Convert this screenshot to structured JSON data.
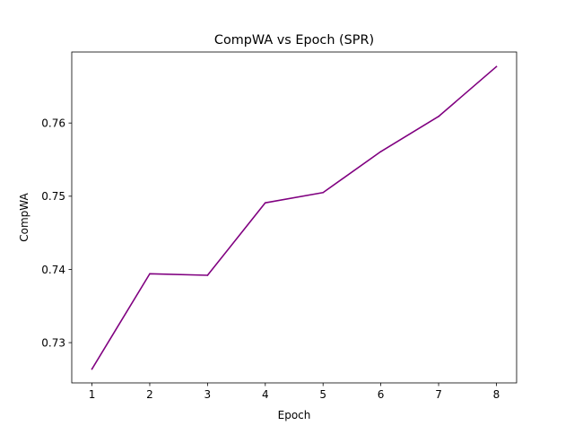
{
  "chart_data": {
    "type": "line",
    "title": "CompWA vs Epoch (SPR)",
    "xlabel": "Epoch",
    "ylabel": "CompWA",
    "x": [
      1,
      2,
      3,
      4,
      5,
      6,
      7,
      8
    ],
    "series": [
      {
        "values": [
          0.7264,
          0.7394,
          0.7392,
          0.7491,
          0.7505,
          0.7561,
          0.7609,
          0.7677
        ],
        "color": "#800080"
      }
    ],
    "xlim": [
      0.65,
      8.35
    ],
    "ylim": [
      0.7245,
      0.7697
    ],
    "xticks": [
      1,
      2,
      3,
      4,
      5,
      6,
      7,
      8
    ],
    "yticks": [
      0.73,
      0.74,
      0.75,
      0.76
    ],
    "ytick_labels": [
      "0.73",
      "0.74",
      "0.75",
      "0.76"
    ],
    "grid": false,
    "legend": "none"
  }
}
